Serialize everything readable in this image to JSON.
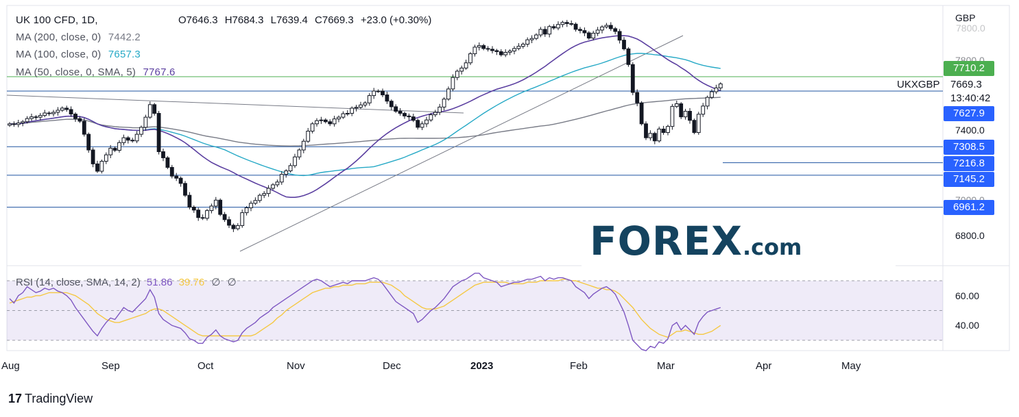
{
  "header": {
    "symbol_line": "UK 100 CFD, 1D,",
    "open": "O7646.3",
    "high": "H7684.3",
    "low": "L7639.4",
    "close": "C7669.3",
    "change": "+23.0 (+0.30%)"
  },
  "legend": [
    {
      "label": "MA (200, close, 0)",
      "value": "7442.2",
      "color": "#787b86"
    },
    {
      "label": "MA (100, close, 0)",
      "value": "7657.3",
      "color": "#26a9c6"
    },
    {
      "label": "MA (50, close, 0, SMA, 5)",
      "value": "7767.6",
      "color": "#5b3fa0"
    }
  ],
  "rsi_legend": {
    "label": "RSI (14, close, SMA, 14, 2)",
    "value": "51.86",
    "sma_value": "39.76",
    "extra1": "∅",
    "extra2": "∅"
  },
  "currency": "GBP",
  "symbol_tag": "UKXGBP",
  "current_price": "7669.3",
  "countdown": "13:40:42",
  "price_tags": [
    {
      "value": "7710.2",
      "color": "#4caf50"
    },
    {
      "value": "7627.9",
      "color": "#2962ff"
    },
    {
      "value": "7308.5",
      "color": "#2962ff"
    },
    {
      "value": "7216.8",
      "color": "#2962ff"
    },
    {
      "value": "7145.2",
      "color": "#2962ff"
    },
    {
      "value": "6961.2",
      "color": "#2962ff"
    }
  ],
  "logo": {
    "main": "FOREX",
    "suffix": ".com"
  },
  "footer": {
    "brand": "TradingView",
    "brand_mark": "17"
  },
  "chart_data": {
    "type": "candlestick",
    "y_axis_ticks": [
      "7800.0",
      "7400.0",
      "7000.0",
      "6800.0"
    ],
    "y_axis_faded": [
      "7800.0",
      "7000.0"
    ],
    "rsi_ticks": [
      "60.00",
      "40.00"
    ],
    "x_labels": [
      "Aug",
      "Sep",
      "Oct",
      "Nov",
      "Dec",
      "2023",
      "Feb",
      "Mar",
      "Apr",
      "May"
    ],
    "ylim": [
      6700,
      8100
    ],
    "rsi_lim": [
      20,
      80
    ],
    "horizontal_levels": [
      7710.2,
      7627.9,
      7308.5,
      7145.2,
      6961.2
    ],
    "support_segment": 7216.8,
    "closes": [
      7440,
      7436,
      7445,
      7452,
      7470,
      7480,
      7478,
      7488,
      7502,
      7498,
      7506,
      7518,
      7530,
      7522,
      7496,
      7470,
      7455,
      7380,
      7290,
      7210,
      7168,
      7225,
      7262,
      7300,
      7288,
      7332,
      7360,
      7346,
      7342,
      7380,
      7420,
      7478,
      7550,
      7500,
      7280,
      7245,
      7190,
      7140,
      7128,
      7098,
      7030,
      6962,
      6945,
      6902,
      6898,
      6942,
      6968,
      7002,
      6920,
      6890,
      6858,
      6838,
      6856,
      6930,
      6958,
      6984,
      7000,
      7030,
      7040,
      7070,
      7090,
      7106,
      7150,
      7170,
      7200,
      7250,
      7290,
      7340,
      7398,
      7440,
      7458,
      7462,
      7452,
      7440,
      7468,
      7478,
      7498,
      7500,
      7530,
      7535,
      7548,
      7560,
      7602,
      7628,
      7628,
      7606,
      7570,
      7538,
      7512,
      7500,
      7485,
      7480,
      7460,
      7420,
      7440,
      7462,
      7492,
      7506,
      7536,
      7582,
      7640,
      7706,
      7742,
      7760,
      7790,
      7842,
      7880,
      7889,
      7872,
      7868,
      7860,
      7854,
      7836,
      7850,
      7858,
      7872,
      7885,
      7897,
      7922,
      7930,
      7950,
      7982,
      7955,
      7998,
      7990,
      8010,
      8022,
      8015,
      8012,
      7982,
      7975,
      7962,
      7932,
      7960,
      7978,
      7996,
      8005,
      7986,
      7970,
      7920,
      7870,
      7780,
      7620,
      7560,
      7440,
      7360,
      7385,
      7342,
      7410,
      7390,
      7425,
      7540,
      7555,
      7480,
      7512,
      7460,
      7390,
      7495,
      7542,
      7592,
      7624,
      7646,
      7669
    ],
    "rsi": [
      58,
      55,
      60,
      62,
      66,
      64,
      62,
      63,
      65,
      64,
      65,
      63,
      62,
      60,
      57,
      52,
      48,
      44,
      40,
      36,
      33,
      38,
      42,
      45,
      44,
      48,
      52,
      50,
      49,
      52,
      55,
      58,
      64,
      59,
      48,
      44,
      42,
      40,
      39,
      38,
      35,
      31,
      30,
      28,
      28,
      32,
      34,
      37,
      33,
      31,
      30,
      29,
      30,
      35,
      38,
      40,
      42,
      45,
      47,
      49,
      52,
      54,
      56,
      58,
      60,
      62,
      64,
      66,
      68,
      70,
      71,
      70,
      68,
      66,
      67,
      68,
      69,
      68,
      70,
      70,
      70,
      70,
      71,
      72,
      71,
      68,
      64,
      60,
      56,
      54,
      52,
      50,
      48,
      42,
      44,
      47,
      50,
      52,
      55,
      58,
      62,
      66,
      68,
      70,
      71,
      73,
      75,
      75,
      72,
      71,
      70,
      69,
      66,
      67,
      68,
      69,
      69,
      70,
      71,
      71,
      72,
      73,
      70,
      72,
      71,
      72,
      72,
      71,
      70,
      66,
      64,
      62,
      58,
      61,
      63,
      65,
      66,
      64,
      61,
      55,
      49,
      40,
      30,
      27,
      24,
      23,
      26,
      25,
      29,
      28,
      31,
      40,
      42,
      37,
      40,
      37,
      34,
      42,
      46,
      49,
      50,
      51,
      52
    ],
    "rsi_sma": [
      55,
      56,
      57,
      58,
      59,
      59,
      60,
      60,
      61,
      62,
      62,
      62,
      62,
      62,
      61,
      60,
      58,
      56,
      54,
      51,
      48,
      46,
      44,
      43,
      42,
      42,
      43,
      44,
      45,
      46,
      47,
      48,
      50,
      51,
      51,
      50,
      48,
      46,
      44,
      42,
      40,
      38,
      36,
      34,
      33,
      33,
      33,
      33,
      33,
      33,
      33,
      33,
      33,
      33,
      33,
      33,
      34,
      36,
      38,
      40,
      42,
      45,
      47,
      50,
      52,
      54,
      56,
      58,
      60,
      62,
      63,
      64,
      65,
      65,
      66,
      66,
      67,
      67,
      67,
      68,
      68,
      68,
      69,
      69,
      69,
      69,
      68,
      67,
      65,
      63,
      60,
      58,
      56,
      54,
      52,
      51,
      51,
      51,
      52,
      53,
      55,
      57,
      59,
      61,
      63,
      65,
      67,
      68,
      69,
      69,
      69,
      69,
      69,
      69,
      68,
      68,
      68,
      68,
      69,
      69,
      69,
      70,
      70,
      70,
      70,
      70,
      71,
      71,
      70,
      70,
      69,
      68,
      67,
      66,
      65,
      65,
      64,
      64,
      63,
      61,
      58,
      55,
      52,
      48,
      44,
      41,
      38,
      36,
      34,
      33,
      32,
      34,
      36,
      36,
      37,
      36,
      35,
      34,
      34,
      35,
      36,
      38,
      40
    ]
  }
}
